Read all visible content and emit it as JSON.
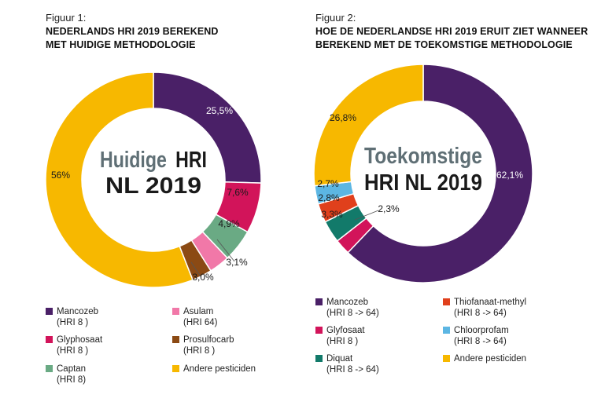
{
  "chart_data": [
    {
      "type": "pie",
      "figure_label": "Figuur 1:",
      "title_line1": "NEDERLANDS HRI 2019 BEREKEND",
      "title_line2": "MET HUIDIGE METHODOLOGIE",
      "center_line1_a": "Huidige",
      "center_line1_b": "HRI",
      "center_line2": "NL 2019",
      "slices": [
        {
          "name": "Mancozeb",
          "sub": "(HRI 8 )",
          "value": 25.5,
          "label": "25,5%",
          "color": "#4a2067"
        },
        {
          "name": "Glyphosaat",
          "sub": "(HRI 8 )",
          "value": 7.6,
          "label": "7,6%",
          "color": "#d2145a"
        },
        {
          "name": "Captan",
          "sub": "(HRI 8)",
          "value": 4.9,
          "label": "4,9%",
          "color": "#6aaa84"
        },
        {
          "name": "Asulam",
          "sub": "(HRI 64)",
          "value": 3.1,
          "label": "3,1%",
          "color": "#f178a8"
        },
        {
          "name": "Prosulfocarb",
          "sub": "(HRI 8 )",
          "value": 3.0,
          "label": "3,0%",
          "color": "#8b4a14"
        },
        {
          "name": "Andere pesticiden",
          "sub": "",
          "value": 56,
          "label": "56%",
          "color": "#f7b800"
        }
      ]
    },
    {
      "type": "pie",
      "figure_label": "Figuur 2:",
      "title_line1": "HOE DE NEDERLANDSE HRI 2019 ERUIT ZIET WANNEER",
      "title_line2": "BEREKEND MET DE TOEKOMSTIGE METHODOLOGIE",
      "center_line1_a": "Toekomstige",
      "center_line1_b": "",
      "center_line2": "HRI NL 2019",
      "slices": [
        {
          "name": "Mancozeb",
          "sub": "(HRI 8 -> 64)",
          "value": 62.1,
          "label": "62,1%",
          "color": "#4a2067"
        },
        {
          "name": "Glyfosaat",
          "sub": "(HRI 8 )",
          "value": 2.3,
          "label": "2,3%",
          "color": "#d2145a"
        },
        {
          "name": "Diquat",
          "sub": "(HRI 8 -> 64)",
          "value": 3.3,
          "label": "3,3%",
          "color": "#127a6a"
        },
        {
          "name": "Thiofanaat-methyl",
          "sub": "(HRI 8 -> 64)",
          "value": 2.8,
          "label": "2,8%",
          "color": "#e0401c"
        },
        {
          "name": "Chloorprofam",
          "sub": "(HRI 8 -> 64)",
          "value": 2.7,
          "label": "2,7%",
          "color": "#5cb6e3"
        },
        {
          "name": "Andere pesticiden",
          "sub": "",
          "value": 26.8,
          "label": "26,8%",
          "color": "#f7b800"
        }
      ]
    }
  ]
}
